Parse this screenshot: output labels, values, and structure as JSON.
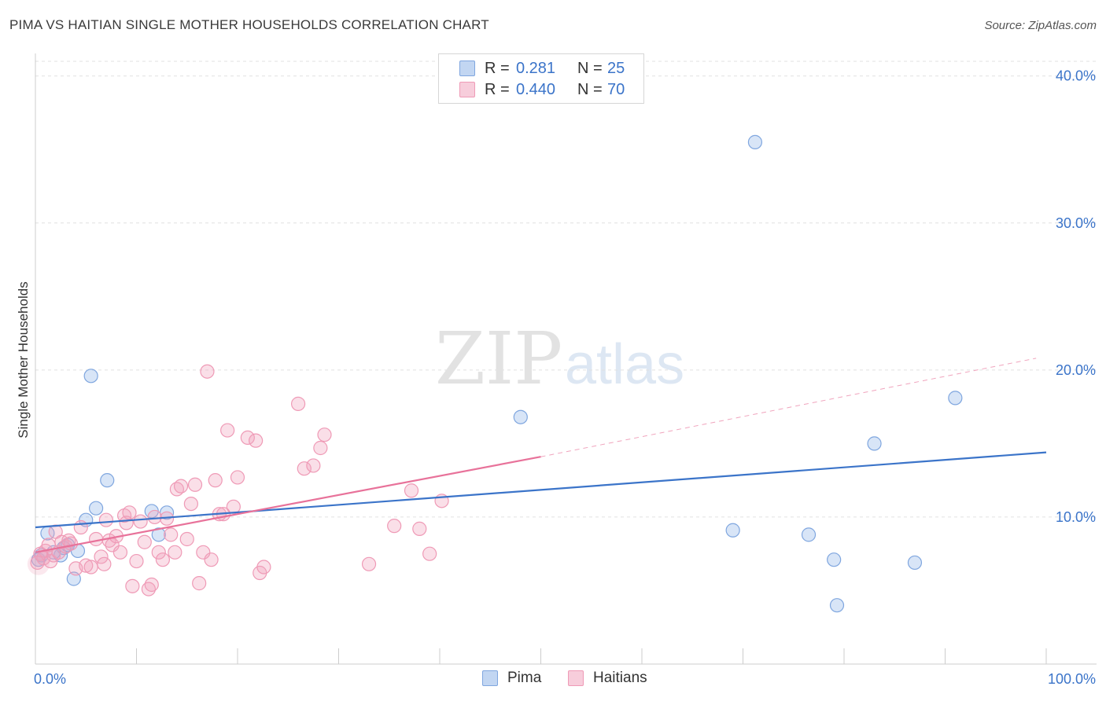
{
  "title": "PIMA VS HAITIAN SINGLE MOTHER HOUSEHOLDS CORRELATION CHART",
  "source": "Source: ZipAtlas.com",
  "watermark": {
    "zip": "ZIP",
    "atlas": "atlas"
  },
  "legend": {
    "rows": [
      {
        "label": "R =",
        "r": "0.281",
        "n_label": "N =",
        "n": "25",
        "color": "#8fb4e8"
      },
      {
        "label": "R =",
        "r": "0.440",
        "n_label": "N =",
        "n": "70",
        "color": "#f0a4bd"
      }
    ]
  },
  "bottom_legend": [
    {
      "name": "Pima",
      "color": "#8fb4e8"
    },
    {
      "name": "Haitians",
      "color": "#f0a4bd"
    }
  ],
  "chart_data": {
    "type": "scatter",
    "title": "PIMA VS HAITIAN SINGLE MOTHER HOUSEHOLDS CORRELATION CHART",
    "xlabel": "",
    "ylabel": "Single Mother Households",
    "xlim": [
      0,
      100
    ],
    "ylim": [
      0,
      41
    ],
    "x_tick_labels": [
      "0.0%",
      "100.0%"
    ],
    "y_ticks": [
      10,
      20,
      30,
      40
    ],
    "y_tick_labels": [
      "10.0%",
      "20.0%",
      "30.0%",
      "40.0%"
    ],
    "grid": true,
    "series": [
      {
        "name": "Pima",
        "color": "#3b74c9",
        "fill": "rgba(143,180,232,0.35)",
        "stroke": "#7fa6df",
        "points": [
          [
            0.3,
            7.1
          ],
          [
            1.2,
            8.9
          ],
          [
            2.5,
            7.4
          ],
          [
            2.8,
            7.9
          ],
          [
            3.2,
            8.1
          ],
          [
            3.8,
            5.8
          ],
          [
            4.2,
            7.7
          ],
          [
            5.0,
            9.8
          ],
          [
            5.5,
            19.6
          ],
          [
            6.0,
            10.6
          ],
          [
            7.1,
            12.5
          ],
          [
            11.5,
            10.4
          ],
          [
            12.2,
            8.8
          ],
          [
            13.0,
            10.3
          ],
          [
            48.0,
            16.8
          ],
          [
            71.2,
            35.5
          ],
          [
            69.0,
            9.1
          ],
          [
            76.5,
            8.8
          ],
          [
            79.0,
            7.1
          ],
          [
            79.3,
            4.0
          ],
          [
            83.0,
            15.0
          ],
          [
            87.0,
            6.9
          ],
          [
            91.0,
            18.1
          ],
          [
            0.6,
            7.4
          ],
          [
            1.8,
            7.6
          ]
        ],
        "trend": {
          "x0": 0,
          "y0": 9.3,
          "x1": 100,
          "y1": 14.4
        }
      },
      {
        "name": "Haitians",
        "color": "#e8729a",
        "fill": "rgba(240,164,189,0.35)",
        "stroke": "#ef9ab6",
        "points": [
          [
            0.5,
            7.5
          ],
          [
            0.8,
            7.2
          ],
          [
            1.0,
            7.7
          ],
          [
            1.5,
            7.0
          ],
          [
            1.8,
            7.4
          ],
          [
            2.0,
            9.0
          ],
          [
            2.3,
            7.6
          ],
          [
            2.6,
            8.3
          ],
          [
            3.0,
            8.0
          ],
          [
            3.5,
            8.2
          ],
          [
            4.0,
            6.5
          ],
          [
            4.5,
            9.3
          ],
          [
            5.0,
            6.7
          ],
          [
            5.5,
            6.6
          ],
          [
            6.0,
            8.5
          ],
          [
            6.5,
            7.3
          ],
          [
            7.0,
            9.8
          ],
          [
            7.3,
            8.4
          ],
          [
            7.6,
            8.1
          ],
          [
            8.0,
            8.7
          ],
          [
            8.4,
            7.6
          ],
          [
            8.8,
            10.1
          ],
          [
            9.0,
            9.6
          ],
          [
            9.3,
            10.3
          ],
          [
            9.6,
            5.3
          ],
          [
            10.0,
            7.0
          ],
          [
            10.4,
            9.7
          ],
          [
            10.8,
            8.3
          ],
          [
            11.2,
            5.1
          ],
          [
            11.5,
            5.4
          ],
          [
            11.8,
            10.0
          ],
          [
            12.2,
            7.6
          ],
          [
            12.6,
            7.1
          ],
          [
            13.0,
            9.9
          ],
          [
            13.4,
            8.8
          ],
          [
            13.8,
            7.6
          ],
          [
            14.0,
            11.9
          ],
          [
            14.4,
            12.1
          ],
          [
            15.0,
            8.5
          ],
          [
            15.4,
            10.9
          ],
          [
            15.8,
            12.2
          ],
          [
            16.2,
            5.5
          ],
          [
            16.6,
            7.6
          ],
          [
            17.0,
            19.9
          ],
          [
            17.4,
            7.1
          ],
          [
            17.8,
            12.5
          ],
          [
            18.2,
            10.2
          ],
          [
            18.6,
            10.2
          ],
          [
            19.0,
            15.9
          ],
          [
            19.6,
            10.7
          ],
          [
            20.0,
            12.7
          ],
          [
            21.0,
            15.4
          ],
          [
            21.8,
            15.2
          ],
          [
            22.2,
            6.2
          ],
          [
            22.6,
            6.6
          ],
          [
            26.0,
            17.7
          ],
          [
            26.6,
            13.3
          ],
          [
            27.5,
            13.5
          ],
          [
            28.2,
            14.7
          ],
          [
            28.6,
            15.6
          ],
          [
            33.0,
            6.8
          ],
          [
            35.5,
            9.4
          ],
          [
            37.2,
            11.8
          ],
          [
            38.0,
            9.2
          ],
          [
            39.0,
            7.5
          ],
          [
            40.2,
            11.1
          ],
          [
            0.2,
            6.9
          ],
          [
            1.3,
            8.1
          ],
          [
            3.3,
            8.4
          ],
          [
            6.8,
            6.8
          ]
        ],
        "trend": {
          "x0": 0,
          "y0": 7.6,
          "x1": 50,
          "y1": 14.1
        },
        "trend_dashed": {
          "x0": 50,
          "y0": 14.1,
          "x1": 99,
          "y1": 20.8
        }
      }
    ]
  }
}
